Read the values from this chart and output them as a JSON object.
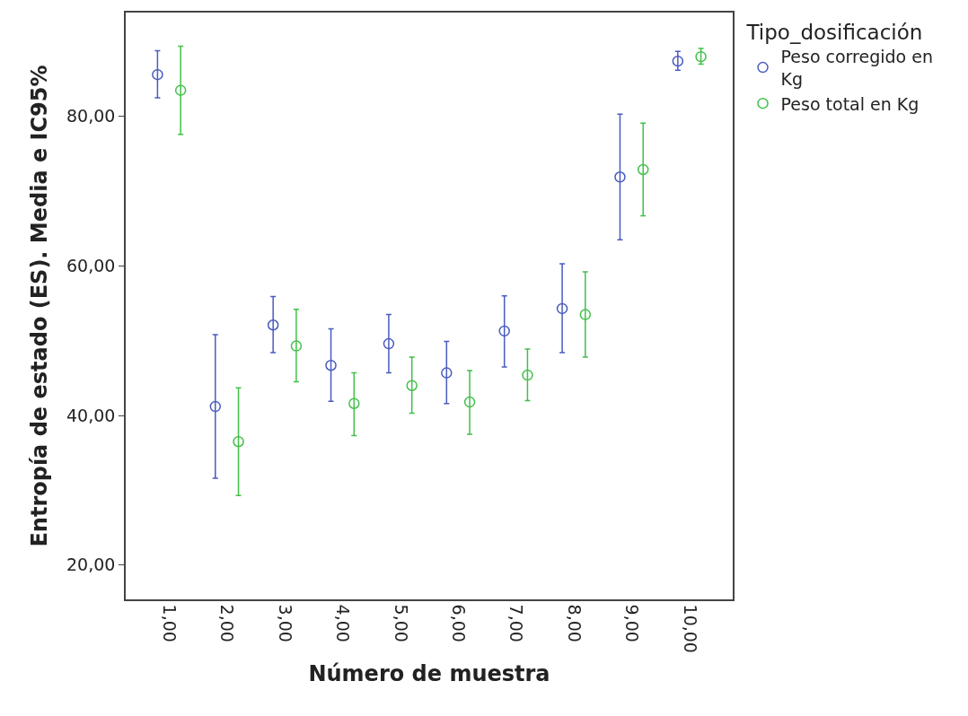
{
  "chart_data": {
    "type": "scatter",
    "xlabel": "Número de muestra",
    "ylabel": "Entropía de estado (ES). Media e IC95%",
    "legend_title": "Tipo_dosificación",
    "categories": [
      "1,00",
      "2,00",
      "3,00",
      "4,00",
      "5,00",
      "6,00",
      "7,00",
      "8,00",
      "9,00",
      "10,00"
    ],
    "series": [
      {
        "name": "Peso corregido en Kg",
        "color": "#4a5bbf",
        "values": [
          85.6,
          41.2,
          52.1,
          46.7,
          49.6,
          45.7,
          51.3,
          54.3,
          71.9,
          87.4
        ],
        "errors": [
          [
            82.5,
            88.8
          ],
          [
            31.6,
            50.8
          ],
          [
            48.4,
            55.9
          ],
          [
            41.9,
            51.6
          ],
          [
            45.7,
            53.5
          ],
          [
            41.6,
            49.9
          ],
          [
            46.5,
            56.0
          ],
          [
            48.4,
            60.3
          ],
          [
            63.5,
            80.3
          ],
          [
            86.2,
            88.7
          ]
        ]
      },
      {
        "name": "Peso total en Kg",
        "color": "#42c04a",
        "values": [
          83.5,
          36.5,
          49.3,
          41.6,
          44.0,
          41.8,
          45.4,
          53.5,
          72.9,
          88.0
        ],
        "errors": [
          [
            77.6,
            89.4
          ],
          [
            29.3,
            43.7
          ],
          [
            44.5,
            54.2
          ],
          [
            37.3,
            45.7
          ],
          [
            40.3,
            47.8
          ],
          [
            37.5,
            46.0
          ],
          [
            42.0,
            48.9
          ],
          [
            47.8,
            59.2
          ],
          [
            66.7,
            79.1
          ],
          [
            87.0,
            89.1
          ]
        ]
      }
    ],
    "ylim": [
      15.4,
      93.9
    ],
    "yticks": [
      {
        "value": 20,
        "label": "20,00"
      },
      {
        "value": 40,
        "label": "40,00"
      },
      {
        "value": 60,
        "label": "60,00"
      },
      {
        "value": 80,
        "label": "80,00"
      }
    ],
    "marker": "circle",
    "legend": "top right"
  }
}
